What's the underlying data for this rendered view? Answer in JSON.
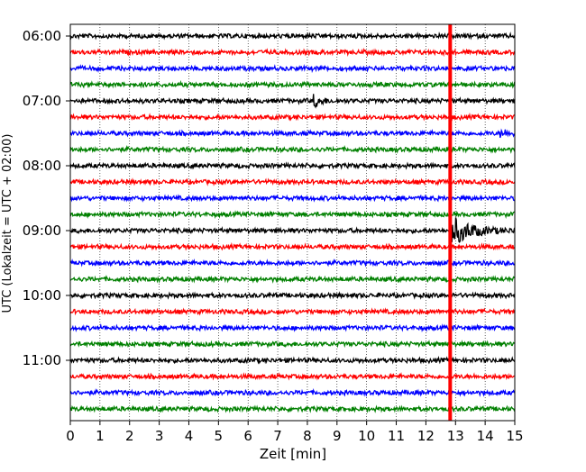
{
  "chart_data": {
    "type": "line",
    "subtype": "helicorder",
    "xlabel": "Zeit  [min]",
    "ylabel": "UTC (Lokalzeit = UTC + 02:00)",
    "xlim": [
      0,
      15
    ],
    "x_ticks": [
      "0",
      "1",
      "2",
      "3",
      "4",
      "5",
      "6",
      "7",
      "8",
      "9",
      "10",
      "11",
      "12",
      "13",
      "14",
      "15"
    ],
    "y_tick_labels": [
      "06:00",
      "07:00",
      "08:00",
      "09:00",
      "10:00",
      "11:00"
    ],
    "trace_start_hour": 6,
    "trace_start_minute": 0,
    "trace_interval_min": 15,
    "trace_count": 24,
    "trace_colors": [
      "#000000",
      "#ff0000",
      "#0000ff",
      "#008000"
    ],
    "grid": "vertical dotted at each minute",
    "events": [
      {
        "trace_index": 4,
        "time_min": 8.2,
        "amplitude": "small local event"
      },
      {
        "trace_index": 12,
        "time_min": 12.8,
        "amplitude": "large earthquake (clipped)"
      },
      {
        "trace_index": 6,
        "time_min": 14.5,
        "amplitude": "small burst"
      }
    ],
    "marker_line_min": 12.82,
    "marker_color": "#ff0000"
  }
}
